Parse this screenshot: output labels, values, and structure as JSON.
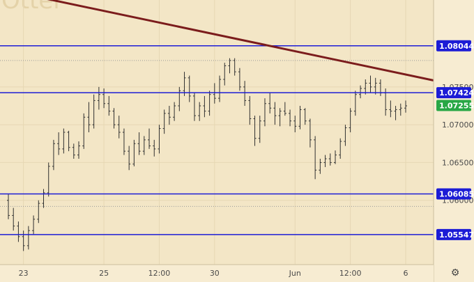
{
  "chart_data": {
    "type": "candlestick",
    "title": "",
    "ylim": [
      1.0515,
      1.0865
    ],
    "y_ticks": [
      1.06,
      1.065,
      1.07,
      1.075
    ],
    "y_tick_labels": [
      "1.06000",
      "1.06500",
      "1.07000",
      "1.07500"
    ],
    "x_ticks": [
      {
        "index": 3,
        "label": "23"
      },
      {
        "index": 19,
        "label": "25"
      },
      {
        "index": 30,
        "label": "12:00"
      },
      {
        "index": 41,
        "label": "30"
      },
      {
        "index": 57,
        "label": "Jun"
      },
      {
        "index": 68,
        "label": "12:00"
      },
      {
        "index": 79,
        "label": "6"
      }
    ],
    "candles": [
      [
        1.06,
        1.0608,
        1.0575,
        1.058
      ],
      [
        1.058,
        1.059,
        1.056,
        1.0566
      ],
      [
        1.0566,
        1.0572,
        1.0545,
        1.0552
      ],
      [
        1.0552,
        1.056,
        1.0533,
        1.054
      ],
      [
        1.054,
        1.0566,
        1.0535,
        1.056
      ],
      [
        1.056,
        1.058,
        1.0555,
        1.0575
      ],
      [
        1.0575,
        1.06,
        1.057,
        1.0596
      ],
      [
        1.0596,
        1.0615,
        1.059,
        1.061
      ],
      [
        1.061,
        1.065,
        1.0605,
        1.0645
      ],
      [
        1.0645,
        1.068,
        1.064,
        1.0675
      ],
      [
        1.0675,
        1.069,
        1.066,
        1.0668
      ],
      [
        1.0668,
        1.0695,
        1.0662,
        1.069
      ],
      [
        1.069,
        1.0692,
        1.0665,
        1.067
      ],
      [
        1.067,
        1.0675,
        1.0655,
        1.066
      ],
      [
        1.066,
        1.0678,
        1.0655,
        1.0672
      ],
      [
        1.0672,
        1.0715,
        1.0668,
        1.071
      ],
      [
        1.071,
        1.073,
        1.069,
        1.07
      ],
      [
        1.07,
        1.074,
        1.0695,
        1.0732
      ],
      [
        1.0732,
        1.075,
        1.072,
        1.074
      ],
      [
        1.074,
        1.0748,
        1.0722,
        1.0728
      ],
      [
        1.0728,
        1.0738,
        1.0712,
        1.0718
      ],
      [
        1.0718,
        1.0722,
        1.0695,
        1.07
      ],
      [
        1.07,
        1.0712,
        1.0682,
        1.069
      ],
      [
        1.069,
        1.0695,
        1.066,
        1.0665
      ],
      [
        1.0665,
        1.0672,
        1.064,
        1.0648
      ],
      [
        1.0648,
        1.068,
        1.0645,
        1.0675
      ],
      [
        1.0675,
        1.069,
        1.066,
        1.0665
      ],
      [
        1.0665,
        1.0685,
        1.066,
        1.068
      ],
      [
        1.068,
        1.0695,
        1.0668,
        1.0672
      ],
      [
        1.0672,
        1.068,
        1.0658,
        1.0668
      ],
      [
        1.0668,
        1.07,
        1.0662,
        1.0695
      ],
      [
        1.0695,
        1.072,
        1.0688,
        1.0715
      ],
      [
        1.0715,
        1.0725,
        1.07,
        1.071
      ],
      [
        1.071,
        1.073,
        1.0705,
        1.0725
      ],
      [
        1.0725,
        1.075,
        1.0718,
        1.0745
      ],
      [
        1.0745,
        1.077,
        1.0738,
        1.0762
      ],
      [
        1.0762,
        1.0765,
        1.073,
        1.0738
      ],
      [
        1.0738,
        1.0742,
        1.0705,
        1.0712
      ],
      [
        1.0712,
        1.073,
        1.0705,
        1.0725
      ],
      [
        1.0725,
        1.0738,
        1.071,
        1.0718
      ],
      [
        1.0718,
        1.0745,
        1.0712,
        1.074
      ],
      [
        1.074,
        1.0755,
        1.0728,
        1.0735
      ],
      [
        1.0735,
        1.0765,
        1.073,
        1.076
      ],
      [
        1.076,
        1.0782,
        1.0752,
        1.0778
      ],
      [
        1.0778,
        1.0788,
        1.0768,
        1.0785
      ],
      [
        1.0785,
        1.0788,
        1.0765,
        1.077
      ],
      [
        1.077,
        1.0775,
        1.0745,
        1.075
      ],
      [
        1.075,
        1.0758,
        1.0725,
        1.0732
      ],
      [
        1.0732,
        1.0738,
        1.07,
        1.0708
      ],
      [
        1.0708,
        1.0712,
        1.0672,
        1.0682
      ],
      [
        1.0682,
        1.0712,
        1.0676,
        1.0705
      ],
      [
        1.0705,
        1.0735,
        1.0698,
        1.0728
      ],
      [
        1.0728,
        1.0742,
        1.0715,
        1.0722
      ],
      [
        1.0722,
        1.073,
        1.07,
        1.0712
      ],
      [
        1.0712,
        1.0722,
        1.0698,
        1.0718
      ],
      [
        1.0718,
        1.073,
        1.0712,
        1.0715
      ],
      [
        1.0715,
        1.072,
        1.0698,
        1.0705
      ],
      [
        1.0705,
        1.0712,
        1.069,
        1.0698
      ],
      [
        1.0698,
        1.0725,
        1.0694,
        1.072
      ],
      [
        1.072,
        1.0722,
        1.07,
        1.0705
      ],
      [
        1.0705,
        1.0708,
        1.067,
        1.068
      ],
      [
        1.068,
        1.0685,
        1.0628,
        1.064
      ],
      [
        1.064,
        1.0655,
        1.0635,
        1.065
      ],
      [
        1.065,
        1.066,
        1.0644,
        1.0655
      ],
      [
        1.0655,
        1.0662,
        1.0646,
        1.065
      ],
      [
        1.065,
        1.0666,
        1.0648,
        1.066
      ],
      [
        1.066,
        1.0682,
        1.0655,
        1.0678
      ],
      [
        1.0678,
        1.07,
        1.0672,
        1.0696
      ],
      [
        1.0696,
        1.0722,
        1.069,
        1.0718
      ],
      [
        1.0718,
        1.0745,
        1.0712,
        1.074
      ],
      [
        1.074,
        1.0752,
        1.0735,
        1.0748
      ],
      [
        1.0748,
        1.076,
        1.074,
        1.0755
      ],
      [
        1.0755,
        1.0765,
        1.0742,
        1.075
      ],
      [
        1.075,
        1.0762,
        1.074,
        1.0755
      ],
      [
        1.0755,
        1.076,
        1.0738,
        1.0742
      ],
      [
        1.0742,
        1.0748,
        1.0712,
        1.072
      ],
      [
        1.072,
        1.0732,
        1.071,
        1.0718
      ],
      [
        1.0718,
        1.0725,
        1.0706,
        1.072
      ],
      [
        1.072,
        1.0728,
        1.0712,
        1.0722
      ],
      [
        1.0722,
        1.0732,
        1.0716,
        1.0725
      ]
    ],
    "horizontal_levels": [
      {
        "value": 1.08044,
        "label": "1.08044",
        "color": "#1c1cd6"
      },
      {
        "value": 1.07424,
        "label": "1.07424",
        "color": "#1c1cd6"
      },
      {
        "value": 1.06085,
        "label": "1.06085",
        "color": "#1c1cd6"
      },
      {
        "value": 1.05547,
        "label": "1.05547",
        "color": "#1c1cd6"
      }
    ],
    "dotted_levels": [
      1.0785,
      1.0592
    ],
    "trendline": {
      "start": {
        "index": -2,
        "value": 1.088
      },
      "end": {
        "index": 95,
        "value": 1.0744
      },
      "color": "#7b1c1c"
    },
    "current_price": {
      "value": 1.07255,
      "label": "1.07255",
      "color": "#28a745"
    },
    "watermark": "Otter",
    "colors": {
      "background": "#f3e6c6",
      "candle": "#2f2f2f",
      "grid": "#e6d7b3",
      "axis_bg": "#f7ecd2",
      "axis_line": "#cbbf9f"
    }
  },
  "ui": {
    "settings_icon": "gear-icon"
  }
}
